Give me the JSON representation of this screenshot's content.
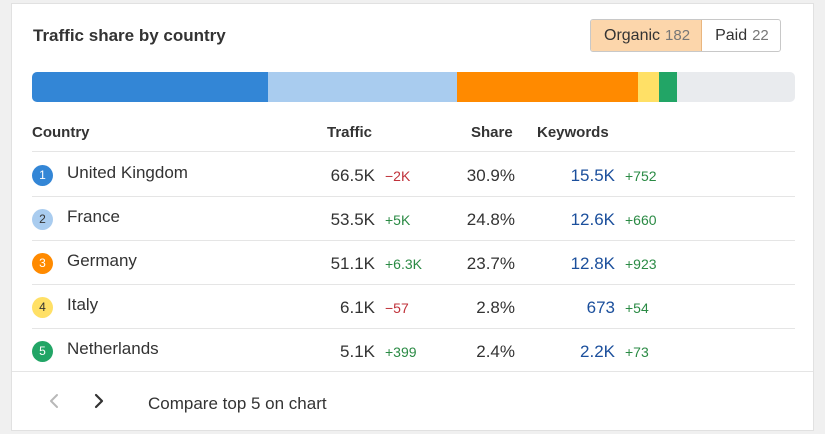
{
  "title": "Traffic share by country",
  "toggle": [
    {
      "label": "Organic",
      "count": "182",
      "active": true
    },
    {
      "label": "Paid",
      "count": "22",
      "active": false
    }
  ],
  "share_bar": {
    "segments": [
      {
        "country": "United Kingdom",
        "share": 30.9,
        "color": "#3386d6"
      },
      {
        "country": "France",
        "share": 24.8,
        "color": "#a9ccef"
      },
      {
        "country": "Germany",
        "share": 23.7,
        "color": "#ff8a00"
      },
      {
        "country": "Italy",
        "share": 2.8,
        "color": "#ffe066"
      },
      {
        "country": "Netherlands",
        "share": 2.4,
        "color": "#22a566"
      }
    ],
    "rest_color": "#e9ebee"
  },
  "columns": {
    "country": "Country",
    "traffic": "Traffic",
    "share": "Share",
    "keywords": "Keywords"
  },
  "rows": [
    {
      "num": "1",
      "country": "United Kingdom",
      "traffic": "66.5K",
      "traffic_delta": "−2K",
      "delta_type": "neg",
      "share": "30.9%",
      "keywords": "15.5K",
      "kw_delta": "+752",
      "badge_bg": "#3386d6",
      "badge_fg": "#ffffff"
    },
    {
      "num": "2",
      "country": "France",
      "traffic": "53.5K",
      "traffic_delta": "+5K",
      "delta_type": "pos",
      "share": "24.8%",
      "keywords": "12.6K",
      "kw_delta": "+660",
      "badge_bg": "#a9ccef",
      "badge_fg": "#333333"
    },
    {
      "num": "3",
      "country": "Germany",
      "traffic": "51.1K",
      "traffic_delta": "+6.3K",
      "delta_type": "pos",
      "share": "23.7%",
      "keywords": "12.8K",
      "kw_delta": "+923",
      "badge_bg": "#ff8a00",
      "badge_fg": "#ffffff"
    },
    {
      "num": "4",
      "country": "Italy",
      "traffic": "6.1K",
      "traffic_delta": "−57",
      "delta_type": "neg",
      "share": "2.8%",
      "keywords": "673",
      "kw_delta": "+54",
      "badge_bg": "#ffe066",
      "badge_fg": "#333333"
    },
    {
      "num": "5",
      "country": "Netherlands",
      "traffic": "5.1K",
      "traffic_delta": "+399",
      "delta_type": "pos",
      "share": "2.4%",
      "keywords": "2.2K",
      "kw_delta": "+73",
      "badge_bg": "#22a566",
      "badge_fg": "#ffffff"
    }
  ],
  "footer": {
    "prev_icon": "chevron-left-icon",
    "next_icon": "chevron-right-icon",
    "compare_label": "Compare top 5 on chart"
  }
}
